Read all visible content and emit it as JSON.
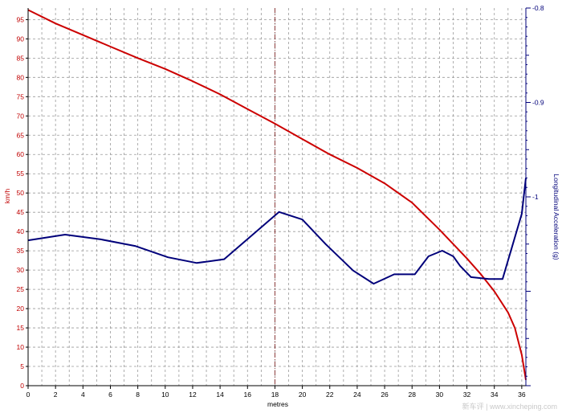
{
  "chart_data": {
    "type": "line",
    "xlabel": "metres",
    "ylabel_left": "km/h",
    "ylabel_right": "Longitudinal Acceleration (g)",
    "xlim": [
      0,
      36.3
    ],
    "ylim_left": [
      0,
      98
    ],
    "ylim_right": [
      -1.2,
      -0.8
    ],
    "x_ticks": [
      0,
      2,
      4,
      6,
      8,
      10,
      12,
      14,
      16,
      18,
      20,
      22,
      24,
      26,
      28,
      30,
      32,
      34,
      36
    ],
    "y_ticks_left": [
      0,
      5,
      10,
      15,
      20,
      25,
      30,
      35,
      40,
      45,
      50,
      55,
      60,
      65,
      70,
      75,
      80,
      85,
      90,
      95
    ],
    "y_ticks_right": [
      -1,
      -0.9,
      -0.8
    ],
    "marker_x": 18,
    "grid": true,
    "colors": {
      "speed": "#cc0000",
      "accel": "#00007a",
      "marker": "#8b3a3a",
      "grid": "#9a9a9a"
    },
    "series": [
      {
        "axis": "left",
        "x": [
          0,
          2,
          4,
          6,
          8,
          10,
          12,
          14,
          16,
          18,
          20,
          22,
          24,
          26,
          28,
          30,
          32,
          33,
          34,
          35,
          35.5,
          36,
          36.3
        ],
        "values": [
          97.5,
          94,
          91,
          88,
          85,
          82.2,
          79,
          75.6,
          71.8,
          68,
          64,
          60,
          56.5,
          52.5,
          47.5,
          40.5,
          33,
          29,
          24.5,
          19,
          15,
          8,
          1.5
        ]
      },
      {
        "axis": "right",
        "x": [
          0,
          2.7,
          5.3,
          7.8,
          10.2,
          12.3,
          14.3,
          18.3,
          20,
          21.7,
          23.7,
          25.2,
          26.7,
          28.2,
          29.2,
          30.2,
          31,
          31.5,
          32.3,
          33.6,
          34.6,
          36,
          36.3
        ],
        "values": [
          -1.046,
          -1.04,
          -1.045,
          -1.052,
          -1.064,
          -1.07,
          -1.066,
          -1.016,
          -1.024,
          -1.05,
          -1.078,
          -1.092,
          -1.082,
          -1.082,
          -1.063,
          -1.057,
          -1.063,
          -1.073,
          -1.085,
          -1.087,
          -1.087,
          -1.018,
          -0.98
        ]
      }
    ]
  },
  "watermark": "新车评 | www.xincheping.com"
}
